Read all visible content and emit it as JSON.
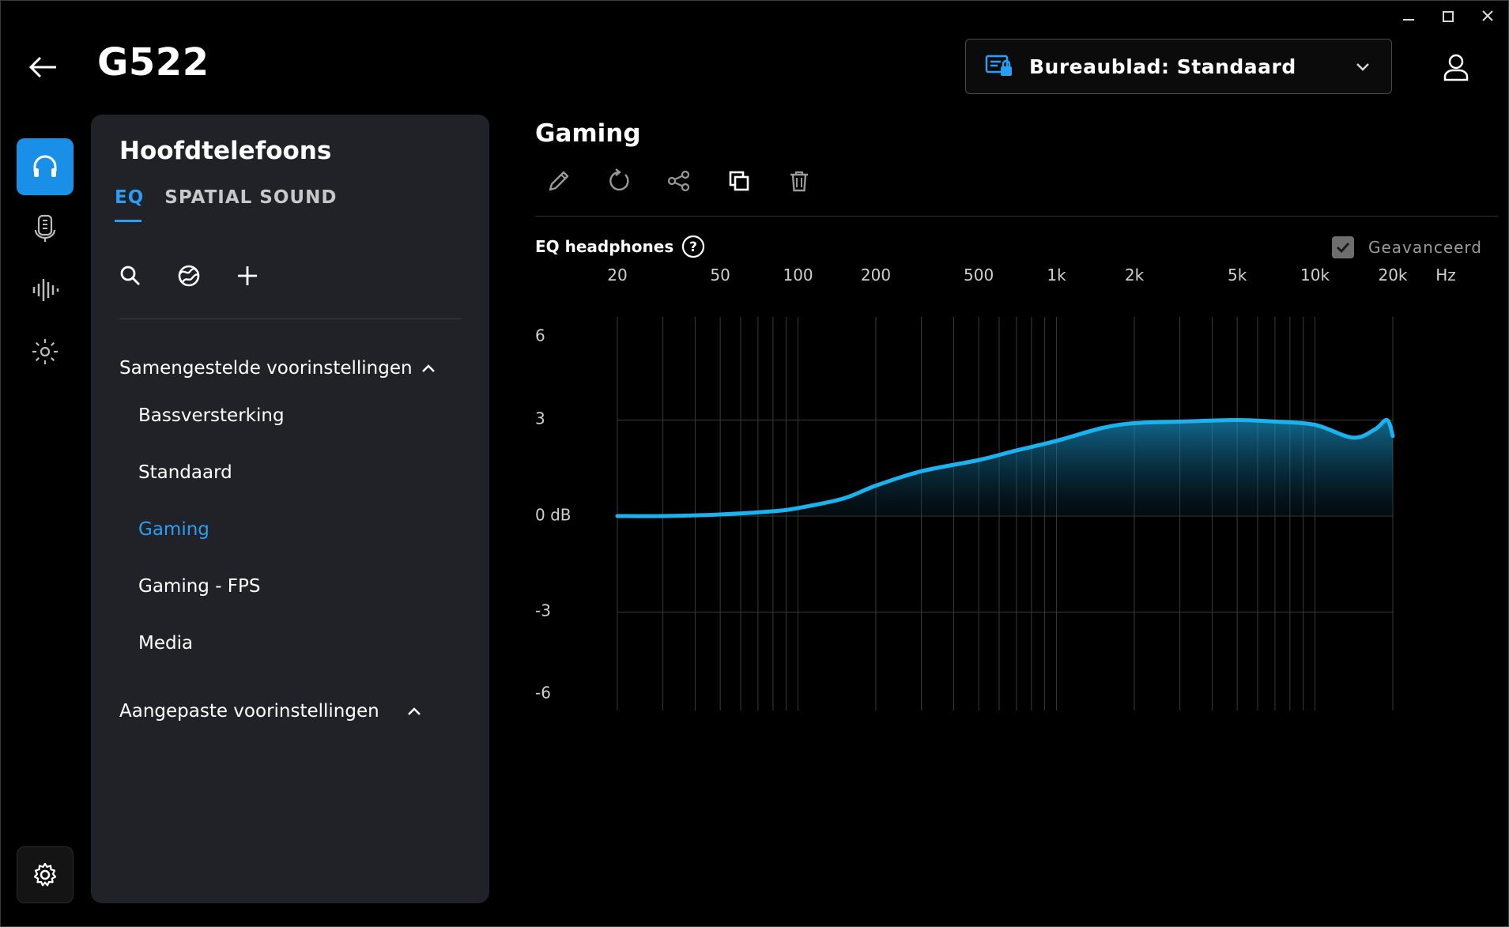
{
  "window": {
    "minimize": "–",
    "maximize": "□",
    "close": "✕"
  },
  "header": {
    "device_name": "G522",
    "profile_label": "Bureaublad: Standaard"
  },
  "rail": {
    "items": [
      "headphones-icon",
      "microphone-icon",
      "soundwave-icon",
      "lighting-icon"
    ],
    "active": "headphones-icon"
  },
  "panel": {
    "title": "Hoofdtelefoons",
    "tabs": [
      "EQ",
      "SPATIAL SOUND"
    ],
    "active_tab": "EQ",
    "section_builtin": "Samengestelde voorinstellingen",
    "presets": [
      "Bassversterking",
      "Standaard",
      "Gaming",
      "Gaming - FPS",
      "Media"
    ],
    "active_preset": "Gaming",
    "section_custom": "Aangepaste voorinstellingen"
  },
  "main": {
    "title": "Gaming",
    "eq_label": "EQ headphones",
    "advanced_label": "Geavanceerd",
    "advanced_checked": true
  },
  "chart_data": {
    "type": "area",
    "title": "EQ headphones",
    "x_tick_labels": [
      "20",
      "50",
      "100",
      "200",
      "500",
      "1k",
      "2k",
      "5k",
      "10k",
      "20k"
    ],
    "x_unit": "Hz",
    "y_tick_labels": [
      "6",
      "3",
      "0 dB",
      "-3",
      "-6"
    ],
    "ylim": [
      -6,
      6
    ],
    "xlim": [
      20,
      20000
    ],
    "x_scale": "log",
    "series": [
      {
        "name": "Gaming",
        "color": "#19b4f0",
        "x": [
          20,
          30,
          50,
          80,
          100,
          150,
          200,
          300,
          500,
          700,
          1000,
          1500,
          2000,
          3000,
          5000,
          7000,
          10000,
          14000,
          17000,
          19000,
          20000
        ],
        "y": [
          0.0,
          0.0,
          0.05,
          0.15,
          0.25,
          0.55,
          0.95,
          1.4,
          1.75,
          2.05,
          2.35,
          2.75,
          2.9,
          2.95,
          3.0,
          2.95,
          2.85,
          2.45,
          2.7,
          3.0,
          2.5
        ]
      }
    ]
  }
}
